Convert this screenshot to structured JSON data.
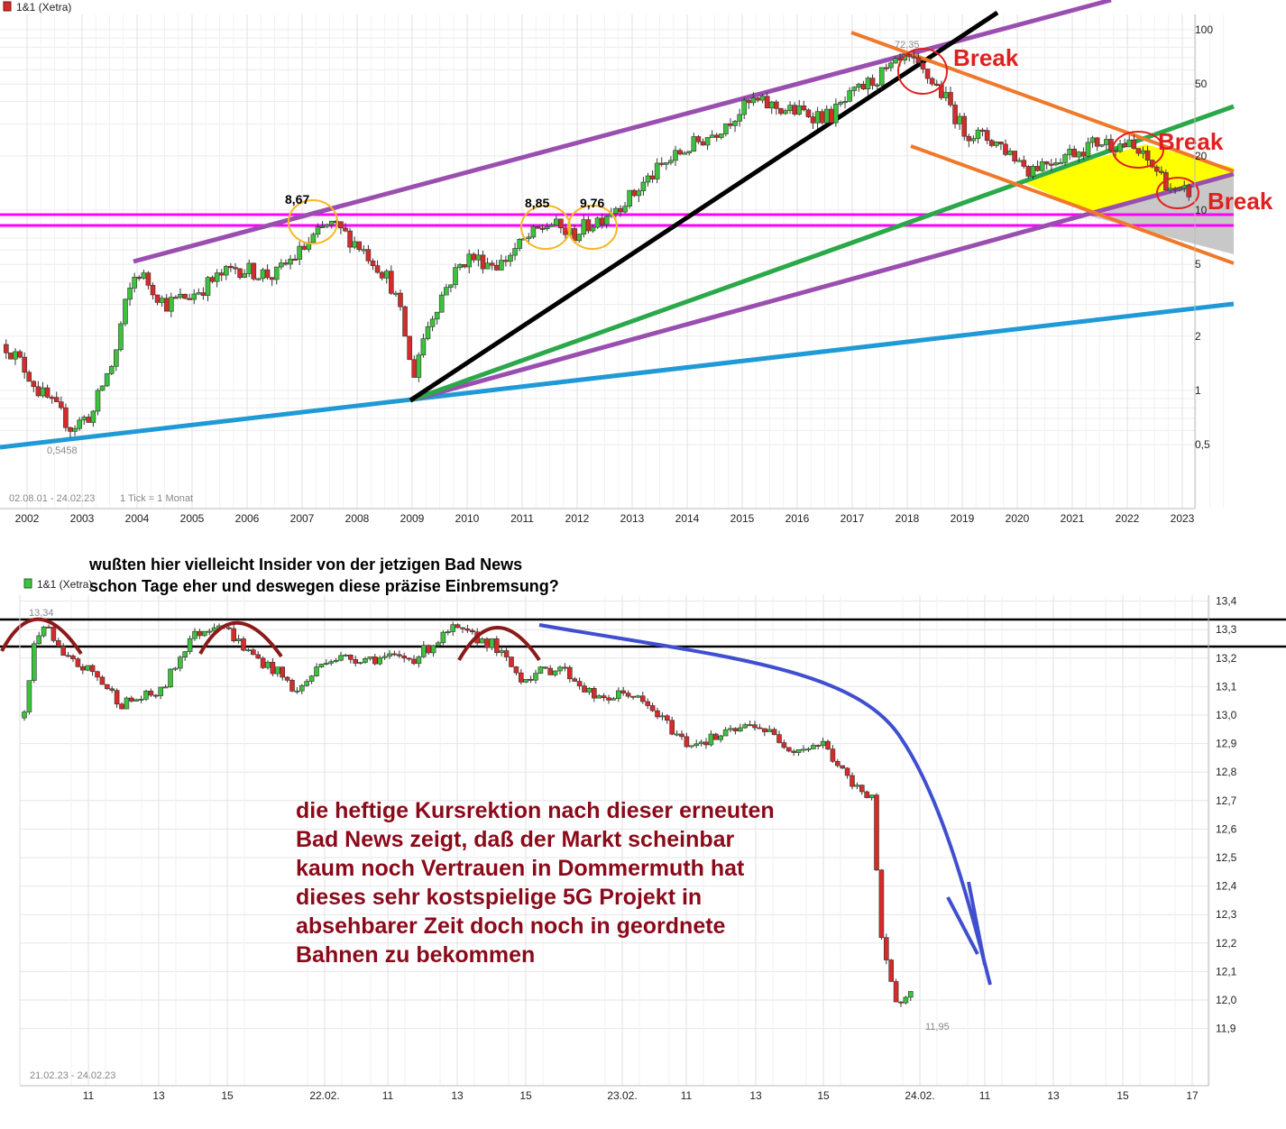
{
  "chart_data": [
    {
      "type": "candlestick",
      "legend": "1&1 (Xetra)",
      "range_label": "02.08.01 - 24.02.23",
      "tick_label": "1 Tick = 1 Monat",
      "y_scale": "log",
      "y_ticks": [
        "100",
        "50",
        "20",
        "10",
        "5",
        "2",
        "1",
        "0,5"
      ],
      "y_tick_values": [
        100,
        50,
        20,
        10,
        5,
        2,
        1,
        0.5
      ],
      "x_ticks": [
        "2002",
        "2003",
        "2004",
        "2005",
        "2006",
        "2007",
        "2008",
        "2009",
        "2010",
        "2011",
        "2012",
        "2013",
        "2014",
        "2015",
        "2016",
        "2017",
        "2018",
        "2019",
        "2020",
        "2021",
        "2022",
        "2023"
      ],
      "annotations": {
        "high": "72,35",
        "low": "0,5458",
        "peak1": "8,67",
        "peak2": "8,85",
        "peak3": "9,76",
        "break1": "Break",
        "break2": "Break",
        "break3": "Break"
      },
      "monthly_close_anchors": [
        {
          "t": 2001.6,
          "v": 1.8
        },
        {
          "t": 2002.2,
          "v": 1.0
        },
        {
          "t": 2002.8,
          "v": 0.62
        },
        {
          "t": 2003.2,
          "v": 0.75
        },
        {
          "t": 2003.6,
          "v": 1.5
        },
        {
          "t": 2004.0,
          "v": 4.6
        },
        {
          "t": 2004.5,
          "v": 3.0
        },
        {
          "t": 2005.0,
          "v": 3.4
        },
        {
          "t": 2005.8,
          "v": 4.8
        },
        {
          "t": 2006.5,
          "v": 4.3
        },
        {
          "t": 2007.0,
          "v": 6.0
        },
        {
          "t": 2007.5,
          "v": 8.4
        },
        {
          "t": 2008.0,
          "v": 6.5
        },
        {
          "t": 2008.6,
          "v": 4.0
        },
        {
          "t": 2009.0,
          "v": 1.1
        },
        {
          "t": 2009.5,
          "v": 3.2
        },
        {
          "t": 2010.0,
          "v": 5.5
        },
        {
          "t": 2010.6,
          "v": 5.0
        },
        {
          "t": 2011.5,
          "v": 8.5
        },
        {
          "t": 2011.9,
          "v": 7.2
        },
        {
          "t": 2012.4,
          "v": 9.0
        },
        {
          "t": 2013.0,
          "v": 12.0
        },
        {
          "t": 2013.8,
          "v": 20.0
        },
        {
          "t": 2014.5,
          "v": 27.0
        },
        {
          "t": 2015.2,
          "v": 40.0
        },
        {
          "t": 2015.8,
          "v": 36.0
        },
        {
          "t": 2016.6,
          "v": 33.0
        },
        {
          "t": 2017.2,
          "v": 48.0
        },
        {
          "t": 2018.0,
          "v": 68.0
        },
        {
          "t": 2018.5,
          "v": 50.0
        },
        {
          "t": 2019.0,
          "v": 28.0
        },
        {
          "t": 2019.6,
          "v": 24.0
        },
        {
          "t": 2020.2,
          "v": 17.0
        },
        {
          "t": 2020.8,
          "v": 20.0
        },
        {
          "t": 2021.5,
          "v": 24.0
        },
        {
          "t": 2022.0,
          "v": 23.0
        },
        {
          "t": 2022.5,
          "v": 17.0
        },
        {
          "t": 2022.9,
          "v": 12.0
        },
        {
          "t": 2023.15,
          "v": 12.8
        }
      ]
    },
    {
      "type": "candlestick",
      "legend": "1&1 (Xetra)",
      "range_label": "21.02.23 - 24.02.23",
      "y_ticks": [
        "13,4",
        "13,3",
        "13,2",
        "13,1",
        "13,0",
        "12,9",
        "12,8",
        "12,7",
        "12,6",
        "12,5",
        "12,4",
        "12,3",
        "12,2",
        "12,1",
        "12,0",
        "11,9"
      ],
      "y_tick_values": [
        13.4,
        13.3,
        13.2,
        13.1,
        13.0,
        12.9,
        12.8,
        12.7,
        12.6,
        12.5,
        12.4,
        12.3,
        12.2,
        12.1,
        12.0,
        11.9
      ],
      "x_ticks": [
        "11",
        "13",
        "15",
        "22.02.",
        "11",
        "13",
        "15",
        "23.02.",
        "11",
        "13",
        "15",
        "24.02.",
        "11",
        "13",
        "15",
        "17"
      ],
      "annotations": {
        "high": "13,34",
        "low": "11,95"
      },
      "intraday_close_anchors": [
        {
          "t": 0,
          "v": 13.0
        },
        {
          "t": 2,
          "v": 13.25
        },
        {
          "t": 4,
          "v": 13.32
        },
        {
          "t": 8,
          "v": 13.2
        },
        {
          "t": 14,
          "v": 13.15
        },
        {
          "t": 20,
          "v": 13.04
        },
        {
          "t": 28,
          "v": 13.08
        },
        {
          "t": 34,
          "v": 13.27
        },
        {
          "t": 40,
          "v": 13.33
        },
        {
          "t": 46,
          "v": 13.22
        },
        {
          "t": 52,
          "v": 13.15
        },
        {
          "t": 56,
          "v": 13.08
        },
        {
          "t": 62,
          "v": 13.2
        },
        {
          "t": 70,
          "v": 13.2
        },
        {
          "t": 80,
          "v": 13.2
        },
        {
          "t": 88,
          "v": 13.3
        },
        {
          "t": 96,
          "v": 13.25
        },
        {
          "t": 102,
          "v": 13.13
        },
        {
          "t": 110,
          "v": 13.17
        },
        {
          "t": 118,
          "v": 13.05
        },
        {
          "t": 124,
          "v": 13.08
        },
        {
          "t": 130,
          "v": 13.0
        },
        {
          "t": 136,
          "v": 12.9
        },
        {
          "t": 142,
          "v": 12.92
        },
        {
          "t": 150,
          "v": 12.97
        },
        {
          "t": 158,
          "v": 12.88
        },
        {
          "t": 164,
          "v": 12.9
        },
        {
          "t": 170,
          "v": 12.75
        },
        {
          "t": 174,
          "v": 12.72
        },
        {
          "t": 176,
          "v": 12.2
        },
        {
          "t": 179,
          "v": 11.98
        },
        {
          "t": 182,
          "v": 12.05
        }
      ]
    }
  ],
  "texts": {
    "question_line1": "wußten hier vielleicht Insider von der jetzigen Bad News",
    "question_line2": "schon Tage eher und deswegen diese präzise Einbremsung?",
    "comment_lines": [
      "die heftige Kursrektion nach dieser erneuten",
      "Bad News zeigt, daß der Markt scheinbar",
      "kaum noch Vertrauen in Dommermuth hat",
      "dieses sehr kostspielige 5G Projekt in",
      "absehbarer Zeit doch noch in geordnete",
      "Bahnen zu bekommen"
    ]
  },
  "colors": {
    "up": "#3cc23c",
    "down": "#d62b2b",
    "purple": "#9a4fb0",
    "green": "#2aa84a",
    "blue": "#1f9ad6",
    "black": "#000000",
    "orange": "#f0782a",
    "magenta": "#ff00ff",
    "yellow": "#ffff00",
    "gray": "#c8c8c8",
    "break": "#e02020",
    "arc": "#8b1a1a",
    "curve": "#3f4fcf",
    "comment": "#8b0a1a"
  }
}
